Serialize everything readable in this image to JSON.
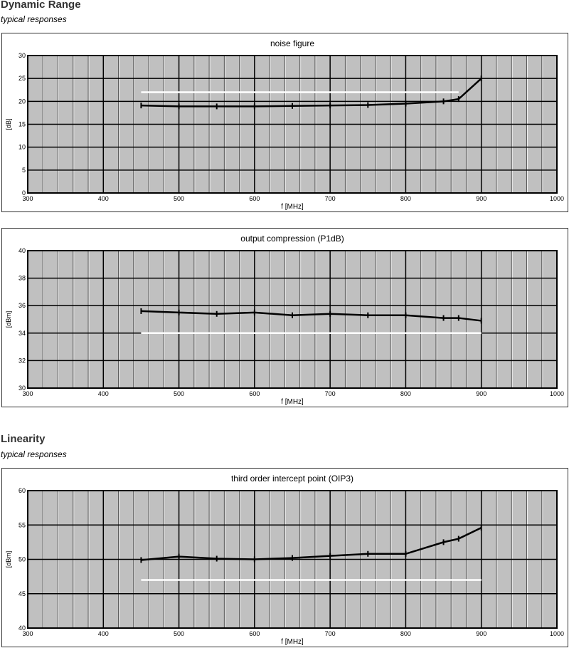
{
  "sections": [
    {
      "heading": "Dynamic Range",
      "subheading": "typical responses"
    },
    {
      "heading": "Linearity",
      "subheading": "typical responses"
    }
  ],
  "chart_data": [
    {
      "type": "line",
      "title": "noise figure",
      "xlabel": "f [MHz]",
      "ylabel": "[dB]",
      "xlim": [
        300,
        1000
      ],
      "ylim": [
        0,
        30
      ],
      "xticks": [
        300,
        400,
        500,
        600,
        700,
        800,
        900,
        1000
      ],
      "yticks": [
        0,
        5,
        10,
        15,
        20,
        25,
        30
      ],
      "x_minor_step": 20,
      "grid": true,
      "background": "#c0c0c0",
      "series": [
        {
          "color": "#000000",
          "x": [
            450,
            500,
            550,
            600,
            650,
            700,
            750,
            800,
            850,
            870,
            900
          ],
          "y": [
            19.1,
            18.9,
            18.9,
            18.9,
            19.0,
            19.1,
            19.2,
            19.5,
            20.0,
            20.5,
            25.0
          ]
        },
        {
          "color": "#ffffff",
          "x": [
            450,
            870
          ],
          "y": [
            22,
            22
          ]
        }
      ]
    },
    {
      "type": "line",
      "title": "output compression (P1dB)",
      "xlabel": "f [MHz]",
      "ylabel": "[dBm]",
      "xlim": [
        300,
        1000
      ],
      "ylim": [
        30,
        40
      ],
      "xticks": [
        300,
        400,
        500,
        600,
        700,
        800,
        900,
        1000
      ],
      "yticks": [
        30,
        32,
        34,
        36,
        38,
        40
      ],
      "x_minor_step": 20,
      "grid": true,
      "background": "#c0c0c0",
      "series": [
        {
          "color": "#000000",
          "x": [
            450,
            500,
            550,
            600,
            650,
            700,
            750,
            800,
            850,
            870,
            900
          ],
          "y": [
            35.6,
            35.5,
            35.4,
            35.5,
            35.3,
            35.4,
            35.3,
            35.3,
            35.1,
            35.1,
            34.9
          ]
        },
        {
          "color": "#ffffff",
          "x": [
            450,
            900
          ],
          "y": [
            34,
            34
          ]
        }
      ]
    },
    {
      "type": "line",
      "title": "third order intercept point (OIP3)",
      "xlabel": "f [MHz]",
      "ylabel": "[dBm]",
      "xlim": [
        300,
        1000
      ],
      "ylim": [
        40,
        60
      ],
      "xticks": [
        300,
        400,
        500,
        600,
        700,
        800,
        900,
        1000
      ],
      "yticks": [
        40,
        45,
        50,
        55,
        60
      ],
      "x_minor_step": 20,
      "grid": true,
      "background": "#c0c0c0",
      "series": [
        {
          "color": "#000000",
          "x": [
            450,
            500,
            550,
            600,
            650,
            700,
            750,
            800,
            850,
            870,
            900
          ],
          "y": [
            49.9,
            50.4,
            50.1,
            50.0,
            50.2,
            50.5,
            50.8,
            50.8,
            52.5,
            53.0,
            54.6
          ]
        },
        {
          "color": "#ffffff",
          "x": [
            450,
            900
          ],
          "y": [
            47,
            47
          ]
        }
      ]
    }
  ]
}
